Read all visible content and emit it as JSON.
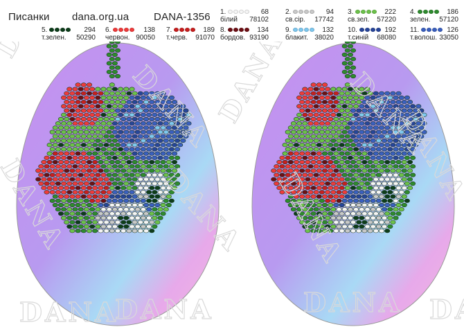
{
  "header": {
    "brand": "Писанки",
    "site": "dana.org.ua",
    "code": "DANA-1356"
  },
  "palette": [
    {
      "index": "1.",
      "name": "білий",
      "count": "68",
      "code": "78102",
      "color": "#f5f5f5"
    },
    {
      "index": "2.",
      "name": "св.сір.",
      "count": "94",
      "code": "17742",
      "color": "#c9c9c9"
    },
    {
      "index": "3.",
      "name": "св.зел.",
      "count": "222",
      "code": "57220",
      "color": "#6cc24a"
    },
    {
      "index": "4.",
      "name": "зелен.",
      "count": "186",
      "code": "57120",
      "color": "#2e8b2e"
    },
    {
      "index": "5.",
      "name": "т.зелен.",
      "count": "294",
      "code": "50290",
      "color": "#0d3d1a"
    },
    {
      "index": "6.",
      "name": "червон.",
      "count": "138",
      "code": "90050",
      "color": "#f03a3a"
    },
    {
      "index": "7.",
      "name": "т.черв.",
      "count": "189",
      "code": "91070",
      "color": "#c81e1e"
    },
    {
      "index": "8.",
      "name": "бордов.",
      "count": "134",
      "code": "93190",
      "color": "#6e0f14"
    },
    {
      "index": "9.",
      "name": "блакит.",
      "count": "132",
      "code": "38020",
      "color": "#7ec8f0"
    },
    {
      "index": "10.",
      "name": "т.синій",
      "count": "192",
      "code": "68080",
      "color": "#27459a"
    },
    {
      "index": "11.",
      "name": "т.волош.",
      "count": "126",
      "code": "33050",
      "color": "#3a5fbf"
    }
  ],
  "watermark": {
    "text": "DANA"
  },
  "colors": {
    "egg_pink": "#e6a3e8",
    "egg_violet": "#b88ff0",
    "egg_blue": "#a9d9f5",
    "egg_outline": "#8a8a8a",
    "bead_outline": "#1b3a1b"
  }
}
